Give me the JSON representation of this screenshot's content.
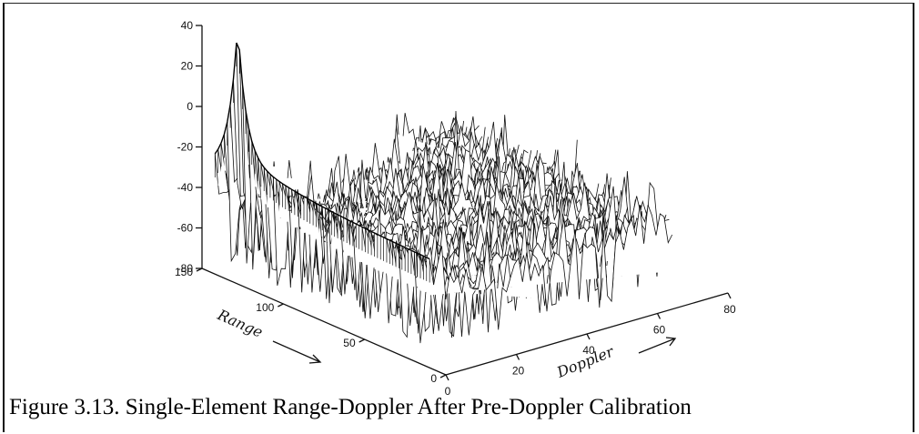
{
  "caption": "Figure 3.13.  Single-Element Range-Doppler After Pre-Doppler Calibration",
  "chart_data": {
    "type": "surface3d",
    "z_ticks": [
      40,
      20,
      0,
      -20,
      -40,
      -60,
      -80
    ],
    "range_ticks": [
      150,
      100,
      50,
      0
    ],
    "doppler_ticks": [
      0,
      20,
      40,
      60,
      80
    ],
    "x_label": "Doppler",
    "y_label": "Range",
    "zlim": [
      -80,
      40
    ],
    "range_lim": [
      0,
      150
    ],
    "doppler_lim": [
      0,
      80
    ],
    "features": {
      "peak": {
        "doppler": 0,
        "range": 128,
        "value": 38
      },
      "clutter_ridge_doppler": 0,
      "noise_floor": -45,
      "noise_min": -75
    }
  }
}
